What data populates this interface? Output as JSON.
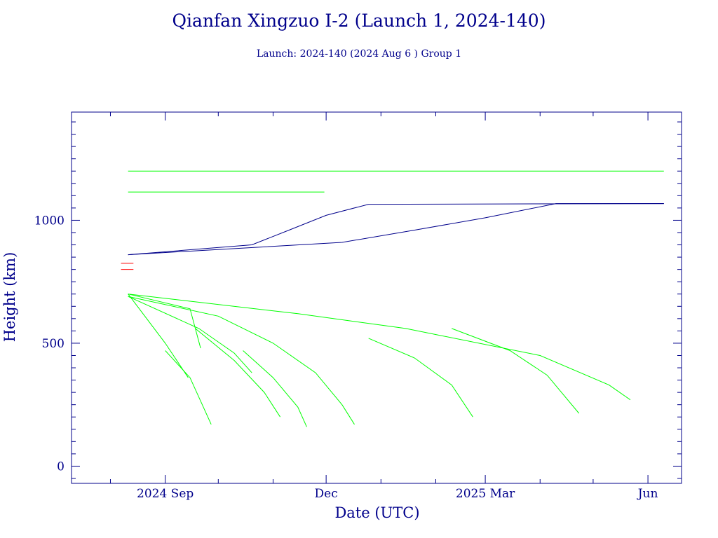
{
  "chart_data": {
    "type": "line",
    "title": "Qianfan Xingzuo I-2 (Launch 1, 2024-140)",
    "subtitle": "Launch: 2024-140  (2024 Aug  6 )  Group 1",
    "xlabel": "Date (UTC)",
    "ylabel": "Height (km)",
    "xlim": [
      "2024-07-10",
      "2025-06-20"
    ],
    "ylim": [
      -70,
      1440
    ],
    "x_ticks": [
      {
        "date": "2024-09-01",
        "label": "2024 Sep"
      },
      {
        "date": "2024-12-01",
        "label": "Dec"
      },
      {
        "date": "2025-03-01",
        "label": "2025 Mar"
      },
      {
        "date": "2025-06-01",
        "label": "Jun"
      }
    ],
    "y_ticks": [
      0,
      500,
      1000
    ],
    "grid": false,
    "colors": {
      "operational": "#00ff00",
      "raised": "#00008b",
      "upper_stage": "#ff0000",
      "axes": "#00008b"
    },
    "series": [
      {
        "values": [
          [
            "2024-08-07",
            825
          ],
          [
            "2024-08-14",
            825
          ]
        ]
      },
      {
        "values": [
          [
            "2024-08-07",
            800
          ],
          [
            "2024-08-14",
            800
          ]
        ]
      },
      {
        "values": [
          [
            "2024-08-11",
            700
          ],
          [
            "2024-11-15",
            620
          ],
          [
            "2025-01-15",
            560
          ],
          [
            "2025-04-01",
            450
          ],
          [
            "2025-05-10",
            330
          ],
          [
            "2025-05-22",
            270
          ]
        ]
      },
      {
        "values": [
          [
            "2024-08-11",
            690
          ],
          [
            "2024-10-01",
            610
          ],
          [
            "2024-11-01",
            500
          ],
          [
            "2024-11-25",
            380
          ],
          [
            "2024-12-10",
            250
          ],
          [
            "2024-12-17",
            170
          ]
        ]
      },
      {
        "values": [
          [
            "2024-09-18",
            560
          ],
          [
            "2024-10-10",
            430
          ],
          [
            "2024-10-27",
            300
          ],
          [
            "2024-11-05",
            200
          ]
        ]
      },
      {
        "values": [
          [
            "2024-10-15",
            470
          ],
          [
            "2024-11-01",
            360
          ],
          [
            "2024-11-15",
            240
          ],
          [
            "2024-11-20",
            160
          ]
        ]
      },
      {
        "values": [
          [
            "2024-12-25",
            520
          ],
          [
            "2025-01-20",
            440
          ],
          [
            "2025-02-10",
            330
          ],
          [
            "2025-02-22",
            200
          ]
        ]
      },
      {
        "values": [
          [
            "2025-02-10",
            560
          ],
          [
            "2025-03-15",
            470
          ],
          [
            "2025-04-05",
            370
          ],
          [
            "2025-04-23",
            215
          ]
        ]
      },
      {
        "values": [
          [
            "2024-08-11",
            690
          ],
          [
            "2024-09-20",
            560
          ],
          [
            "2024-10-10",
            460
          ],
          [
            "2024-10-20",
            380
          ]
        ]
      },
      {
        "values": [
          [
            "2024-08-11",
            700
          ],
          [
            "2024-09-15",
            640
          ],
          [
            "2024-09-21",
            480
          ]
        ]
      },
      {
        "values": [
          [
            "2024-08-11",
            700
          ],
          [
            "2024-09-01",
            500
          ],
          [
            "2024-09-14",
            360
          ]
        ]
      },
      {
        "values": [
          [
            "2024-09-01",
            470
          ],
          [
            "2024-09-15",
            360
          ],
          [
            "2024-09-27",
            170
          ]
        ]
      },
      {
        "values": [
          [
            "2024-08-11",
            860
          ],
          [
            "2024-10-20",
            900
          ],
          [
            "2024-11-10",
            960
          ],
          [
            "2024-12-01",
            1020
          ],
          [
            "2024-12-25",
            1065
          ],
          [
            "2025-06-10",
            1068
          ]
        ]
      },
      {
        "values": [
          [
            "2024-08-11",
            860
          ],
          [
            "2024-12-10",
            910
          ],
          [
            "2025-01-20",
            960
          ],
          [
            "2025-03-01",
            1010
          ],
          [
            "2025-04-10",
            1068
          ],
          [
            "2025-06-10",
            1068
          ]
        ]
      },
      {
        "values": [
          [
            "2024-08-11",
            1200
          ],
          [
            "2025-06-10",
            1200
          ]
        ]
      },
      {
        "values": [
          [
            "2024-08-11",
            1115
          ],
          [
            "2024-11-30",
            1115
          ]
        ]
      }
    ]
  }
}
